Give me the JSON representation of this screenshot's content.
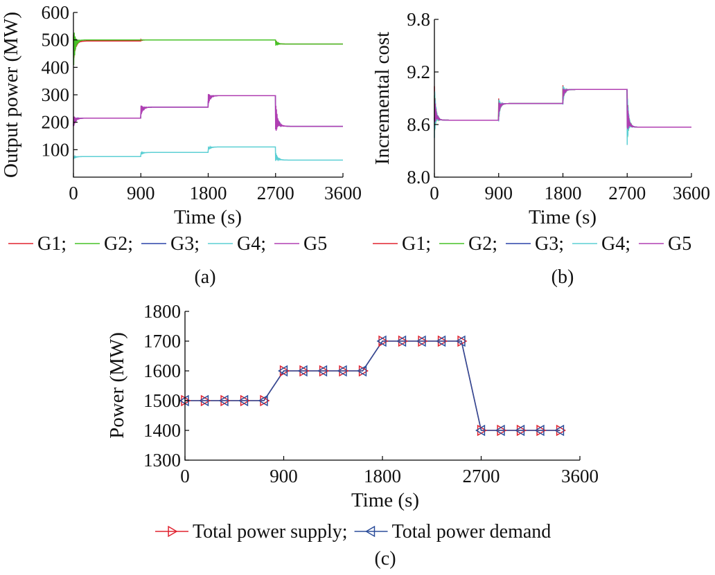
{
  "colors": {
    "G1": "#e0222f",
    "G2": "#47c226",
    "G3": "#2a42a8",
    "G4": "#5ccfd4",
    "G5": "#b03fb2",
    "supply": "#e0222f",
    "demand": "#2b4d9a"
  },
  "chart_data": [
    {
      "panel": "(a)",
      "type": "line",
      "xlabel": "Time (s)",
      "ylabel": "Output power (MW)",
      "xlim": [
        0,
        3600
      ],
      "ylim": [
        0,
        600
      ],
      "xticks": [
        0,
        900,
        1800,
        2700,
        3600
      ],
      "yticks": [
        100,
        200,
        300,
        400,
        500,
        600
      ],
      "legend_position": "below",
      "series": [
        {
          "name": "G1",
          "color_key": "G1",
          "x": [
            0,
            900,
            1800,
            2700,
            3600
          ],
          "y": [
            496,
            500,
            500,
            485,
            485
          ]
        },
        {
          "name": "G2",
          "color_key": "G2",
          "x": [
            0,
            900,
            1800,
            2700,
            3600
          ],
          "y": [
            500,
            500,
            500,
            485,
            485
          ]
        },
        {
          "name": "G3",
          "color_key": "G3",
          "x": [
            0,
            900,
            1800,
            2700,
            3600
          ],
          "y": [
            215,
            255,
            297,
            185,
            185
          ]
        },
        {
          "name": "G4",
          "color_key": "G4",
          "x": [
            0,
            900,
            1800,
            2700,
            3600
          ],
          "y": [
            75,
            90,
            110,
            62,
            62
          ]
        },
        {
          "name": "G5",
          "color_key": "G5",
          "x": [
            0,
            900,
            1800,
            2700,
            3600
          ],
          "y": [
            215,
            255,
            297,
            185,
            185
          ]
        }
      ]
    },
    {
      "panel": "(b)",
      "type": "line",
      "xlabel": "Time (s)",
      "ylabel": "Incremental cost",
      "xlim": [
        0,
        3600
      ],
      "ylim": [
        8.0,
        9.8
      ],
      "xticks": [
        0,
        900,
        1800,
        2700,
        3600
      ],
      "yticks": [
        8.0,
        8.6,
        9.2,
        9.8
      ],
      "ytick_labels": [
        "8.0",
        "8.6",
        "9.2",
        "9.8"
      ],
      "legend_position": "below",
      "series": [
        {
          "name": "G1",
          "color_key": "G1",
          "x": [
            0,
            900,
            1800,
            2700,
            3600
          ],
          "y": [
            8.65,
            8.84,
            9.0,
            8.57,
            8.57
          ]
        },
        {
          "name": "G2",
          "color_key": "G2",
          "x": [
            0,
            900,
            1800,
            2700,
            3600
          ],
          "y": [
            8.65,
            8.84,
            9.0,
            8.57,
            8.57
          ]
        },
        {
          "name": "G3",
          "color_key": "G3",
          "x": [
            0,
            900,
            1800,
            2700,
            3600
          ],
          "y": [
            8.65,
            8.84,
            9.0,
            8.57,
            8.57
          ]
        },
        {
          "name": "G4",
          "color_key": "G4",
          "x": [
            0,
            900,
            1800,
            2700,
            3600
          ],
          "y": [
            8.65,
            8.84,
            9.0,
            8.57,
            8.57
          ]
        },
        {
          "name": "G5",
          "color_key": "G5",
          "x": [
            0,
            900,
            1800,
            2700,
            3600
          ],
          "y": [
            8.65,
            8.84,
            9.0,
            8.57,
            8.57
          ]
        }
      ]
    },
    {
      "panel": "(c)",
      "type": "line",
      "xlabel": "Time (s)",
      "ylabel": "Power (MW)",
      "xlim": [
        0,
        3600
      ],
      "ylim": [
        1300,
        1800
      ],
      "xticks": [
        0,
        900,
        1800,
        2700,
        3600
      ],
      "yticks": [
        1300,
        1400,
        1500,
        1600,
        1700,
        1800
      ],
      "legend_position": "below",
      "series": [
        {
          "name": "Total power supply",
          "color_key": "supply",
          "marker": "triangle-right",
          "x": [
            0,
            180,
            360,
            540,
            720,
            900,
            1080,
            1260,
            1440,
            1620,
            1800,
            1980,
            2160,
            2340,
            2520,
            2700,
            2880,
            3060,
            3240,
            3420
          ],
          "y": [
            1500,
            1500,
            1500,
            1500,
            1500,
            1600,
            1600,
            1600,
            1600,
            1600,
            1700,
            1700,
            1700,
            1700,
            1700,
            1400,
            1400,
            1400,
            1400,
            1400
          ]
        },
        {
          "name": "Total power demand",
          "color_key": "demand",
          "marker": "triangle-left",
          "x": [
            0,
            180,
            360,
            540,
            720,
            900,
            1080,
            1260,
            1440,
            1620,
            1800,
            1980,
            2160,
            2340,
            2520,
            2700,
            2880,
            3060,
            3240,
            3420
          ],
          "y": [
            1500,
            1500,
            1500,
            1500,
            1500,
            1600,
            1600,
            1600,
            1600,
            1600,
            1700,
            1700,
            1700,
            1700,
            1700,
            1400,
            1400,
            1400,
            1400,
            1400
          ]
        }
      ]
    }
  ],
  "legend_ab": [
    {
      "label": "G1;",
      "color_key": "G1"
    },
    {
      "label": "G2;",
      "color_key": "G2"
    },
    {
      "label": "G3;",
      "color_key": "G3"
    },
    {
      "label": "G4;",
      "color_key": "G4"
    },
    {
      "label": "G5",
      "color_key": "G5"
    }
  ],
  "legend_c": [
    {
      "label": "Total power supply;",
      "color_key": "supply",
      "marker": "triangle-right"
    },
    {
      "label": "Total power demand",
      "color_key": "demand",
      "marker": "triangle-left"
    }
  ]
}
